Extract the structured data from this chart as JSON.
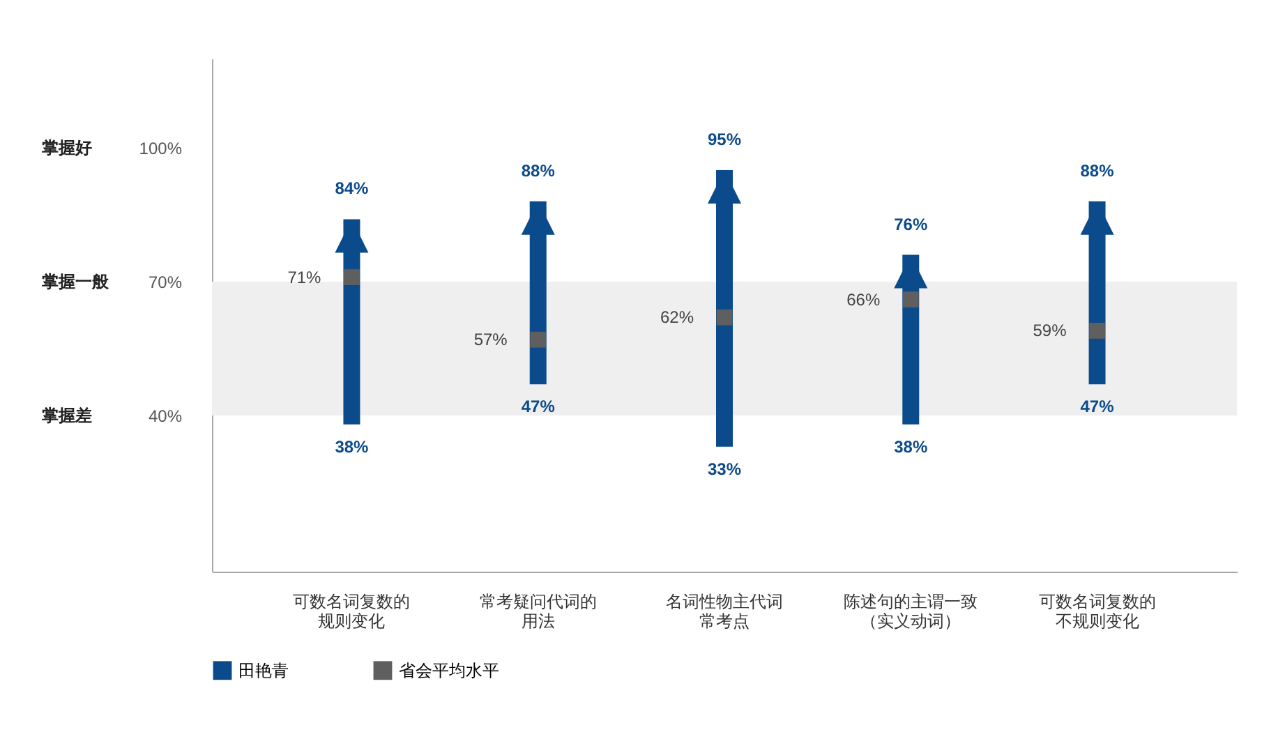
{
  "chart_data": {
    "type": "bar",
    "categories": [
      "可数名词复数的规则变化",
      "常考疑问代词的用法",
      "名词性物主代词常考点",
      "陈述句的主谓一致（实义动词）",
      "可数名词复数的不规则变化"
    ],
    "series": [
      {
        "name": "田艳青",
        "type": "bar",
        "color": "#0b4a8b",
        "base": [
          38,
          47,
          33,
          38,
          47
        ],
        "values": [
          46,
          41,
          62,
          38,
          41
        ]
      },
      {
        "name": "省会平均水平",
        "type": "scatter",
        "marker": "square",
        "color": "#5f5f5f",
        "values": [
          71,
          57,
          62,
          66,
          59
        ],
        "value_labels": [
          "71%",
          "57%",
          "62%",
          "66%",
          "59%"
        ]
      }
    ],
    "ylim": [
      5,
      120
    ],
    "yticks": [
      {
        "value": 40,
        "label": "40%"
      },
      {
        "value": 70,
        "label": "70%"
      },
      {
        "value": 100,
        "label": "100%"
      }
    ],
    "bands": [
      {
        "axis": "y",
        "from": 40,
        "to": 70,
        "color": "#efefef"
      }
    ],
    "annotations": [
      "掌握好",
      "掌握一般",
      "掌握差",
      {
        "text": "84%",
        "x": "可数名词复数的规则变化",
        "y": 84
      },
      {
        "text": "38%",
        "x": "可数名词复数的规则变化",
        "y": 38
      },
      {
        "text": "88%",
        "x": "常考疑问代词的用法",
        "y": 88
      },
      {
        "text": "47%",
        "x": "常考疑问代词的用法",
        "y": 47
      },
      {
        "text": "95%",
        "x": "名词性物主代词常考点",
        "y": 95
      },
      {
        "text": "33%",
        "x": "名词性物主代词常考点",
        "y": 33
      },
      {
        "text": "76%",
        "x": "陈述句的主谓一致（实义动词）",
        "y": 76
      },
      {
        "text": "38%",
        "x": "陈述句的主谓一致（实义动词）",
        "y": 38
      },
      {
        "text": "88%",
        "x": "可数名词复数的不规则变化",
        "y": 88
      },
      {
        "text": "47%",
        "x": "可数名词复数的不规则变化",
        "y": 47
      }
    ],
    "legend": "bottom"
  }
}
